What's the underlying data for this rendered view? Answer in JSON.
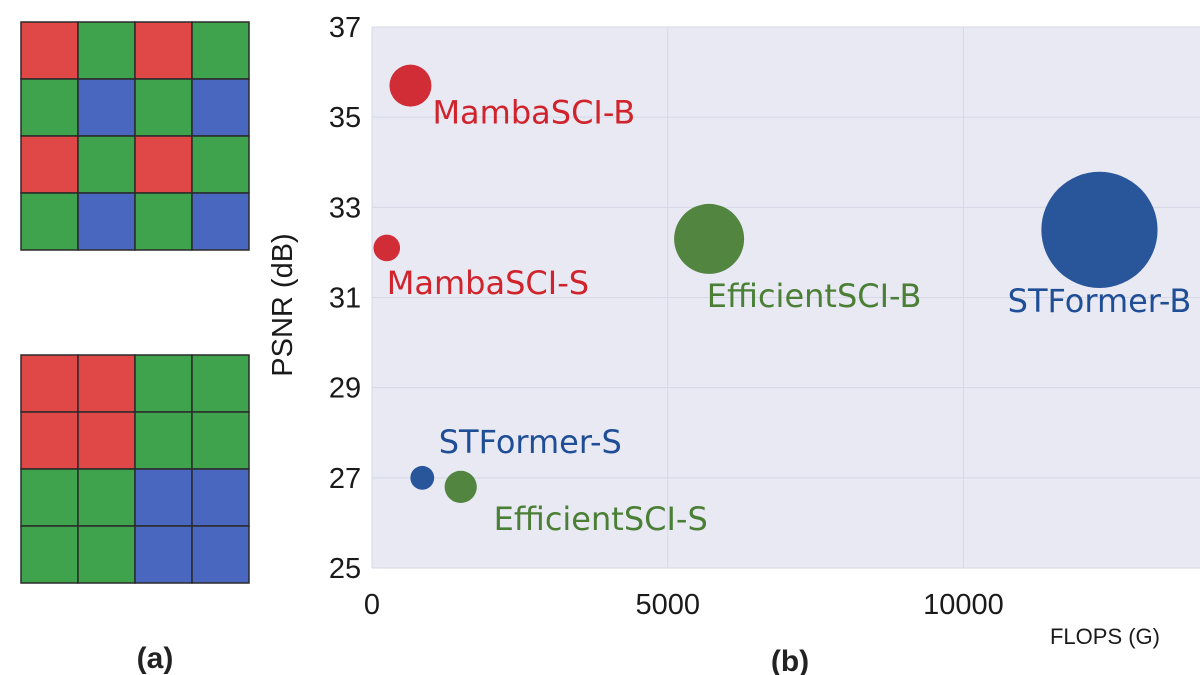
{
  "panel_a": {
    "label": "(a)",
    "colors": {
      "red": "#e04848",
      "green": "#3fa34d",
      "blue": "#4a67bf",
      "line": "#2a2a2a"
    },
    "top_pattern": [
      [
        "red",
        "green",
        "red",
        "green"
      ],
      [
        "green",
        "blue",
        "green",
        "blue"
      ],
      [
        "red",
        "green",
        "red",
        "green"
      ],
      [
        "green",
        "blue",
        "green",
        "blue"
      ]
    ],
    "bottom_pattern": [
      [
        "red",
        "red",
        "green",
        "green"
      ],
      [
        "red",
        "red",
        "green",
        "green"
      ],
      [
        "green",
        "green",
        "blue",
        "blue"
      ],
      [
        "green",
        "green",
        "blue",
        "blue"
      ]
    ]
  },
  "panel_b": {
    "label": "(b)"
  },
  "chart_data": {
    "type": "scatter",
    "xlabel": "FLOPS (G)",
    "ylabel": "PSNR (dB)",
    "xlim": [
      0,
      14000
    ],
    "ylim": [
      25,
      37
    ],
    "x_ticks": [
      0,
      5000,
      10000
    ],
    "y_ticks": [
      25,
      27,
      29,
      31,
      33,
      35,
      37
    ],
    "grid": true,
    "legend": "none",
    "background": "#e8e9f3",
    "points": [
      {
        "label": "MambaSCI-B",
        "x": 650,
        "y": 35.7,
        "size": 3.0,
        "color": "#d0232b"
      },
      {
        "label": "MambaSCI-S",
        "x": 250,
        "y": 32.1,
        "size": 1.9,
        "color": "#d0232b"
      },
      {
        "label": "EfficientSCI-B",
        "x": 5700,
        "y": 32.3,
        "size": 5.0,
        "color": "#4a7f35"
      },
      {
        "label": "STFormer-B",
        "x": 12300,
        "y": 32.5,
        "size": 8.3,
        "color": "#1f4e96"
      },
      {
        "label": "STFormer-S",
        "x": 850,
        "y": 27.0,
        "size": 1.7,
        "color": "#1f4e96"
      },
      {
        "label": "EfficientSCI-S",
        "x": 1500,
        "y": 26.8,
        "size": 2.3,
        "color": "#4a7f35"
      }
    ]
  }
}
